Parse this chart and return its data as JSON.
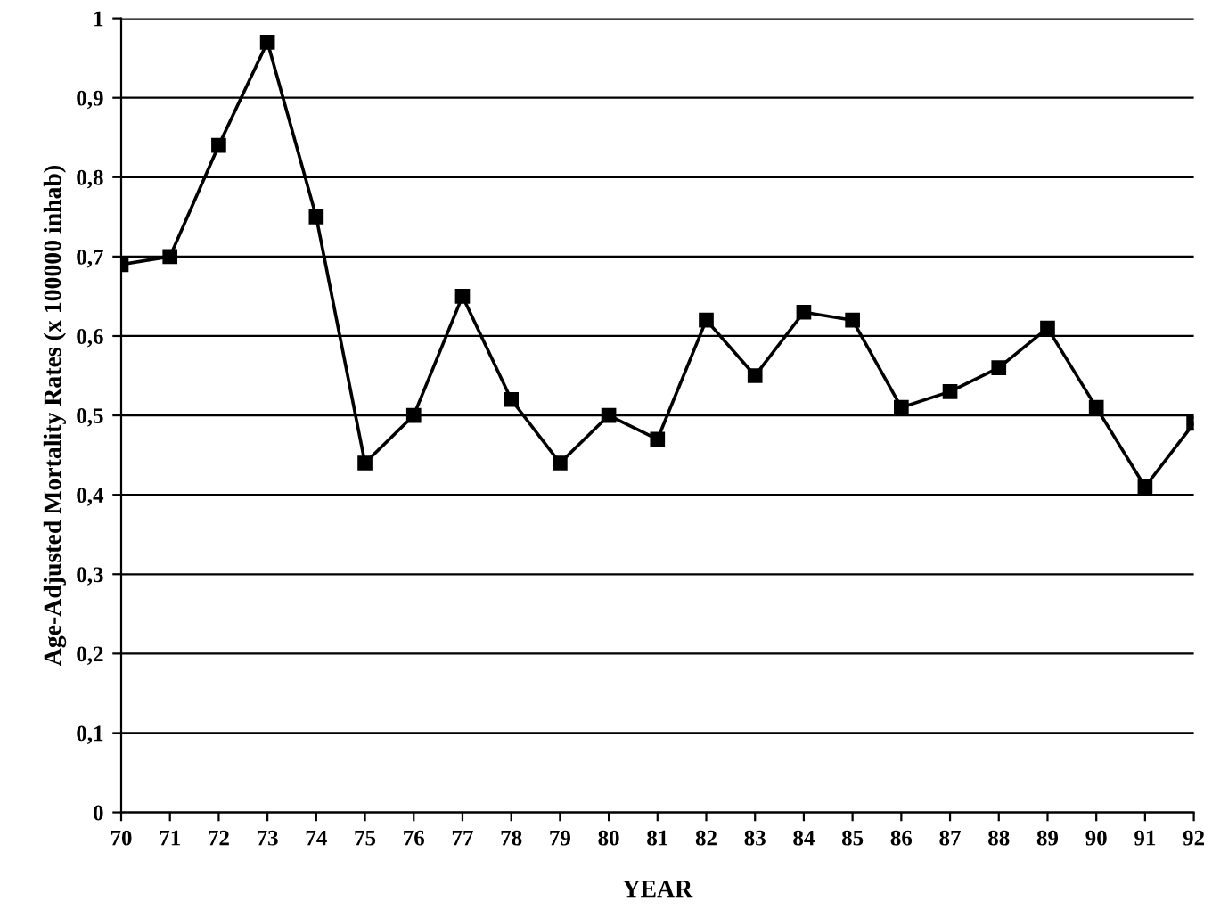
{
  "chart_data": {
    "type": "line",
    "xlabel": "YEAR",
    "ylabel": "Age-Adjusted Mortality Rates (x 100000 inhab)",
    "categories": [
      "70",
      "71",
      "72",
      "73",
      "74",
      "75",
      "76",
      "77",
      "78",
      "79",
      "80",
      "81",
      "82",
      "83",
      "84",
      "85",
      "86",
      "87",
      "88",
      "89",
      "90",
      "91",
      "92"
    ],
    "series": [
      {
        "color": "#000000",
        "values": [
          0.69,
          0.7,
          0.84,
          0.97,
          0.75,
          0.44,
          0.5,
          0.65,
          0.52,
          0.44,
          0.5,
          0.47,
          0.62,
          0.55,
          0.63,
          0.62,
          0.51,
          0.53,
          0.56,
          0.61,
          0.51,
          0.41,
          0.49
        ]
      }
    ],
    "ylim": [
      0,
      1
    ],
    "yticks": [
      {
        "value": 0,
        "label": "0"
      },
      {
        "value": 0.1,
        "label": "0,1"
      },
      {
        "value": 0.2,
        "label": "0,2"
      },
      {
        "value": 0.3,
        "label": "0,3"
      },
      {
        "value": 0.4,
        "label": "0,4"
      },
      {
        "value": 0.5,
        "label": "0,5"
      },
      {
        "value": 0.6,
        "label": "0,6"
      },
      {
        "value": 0.7,
        "label": "0,7"
      },
      {
        "value": 0.8,
        "label": "0,8"
      },
      {
        "value": 0.9,
        "label": "0,9"
      },
      {
        "value": 1,
        "label": "1"
      }
    ],
    "grid": "y",
    "marker": "square",
    "line_style": "solid",
    "legend": false
  }
}
